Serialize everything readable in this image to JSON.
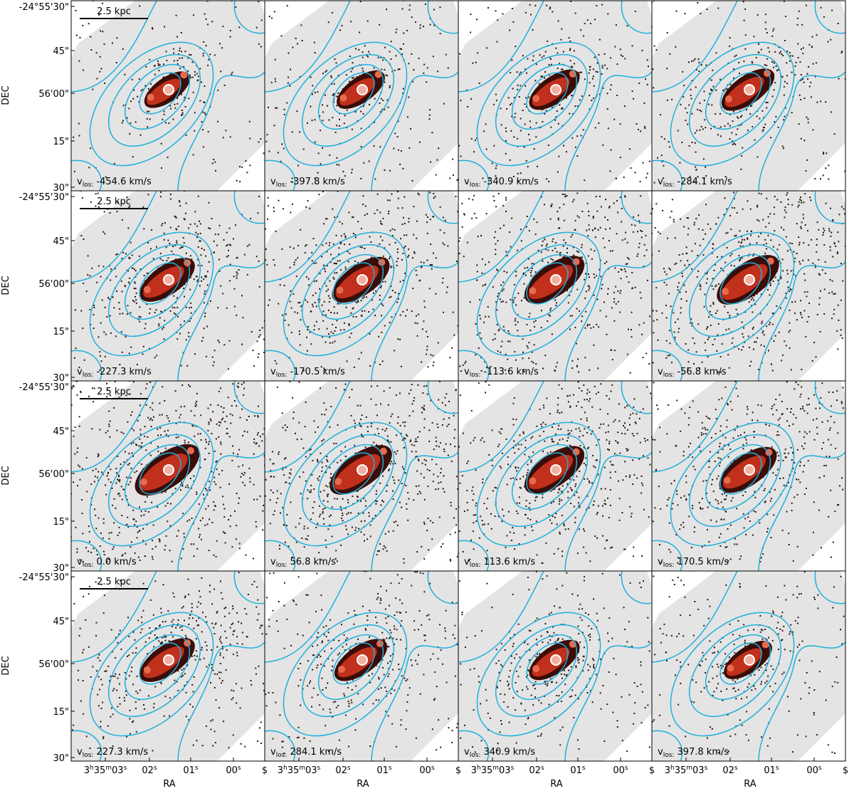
{
  "figure": {
    "y_axis_label": "DEC",
    "x_axis_label": "RA",
    "scale_bar": "2.5 kpc",
    "velocity_symbol": "v",
    "velocity_subscript": "los:",
    "dec_ticks": [
      "-24°55'30\"",
      "45\"",
      "56'00\"",
      "15\"",
      "30\""
    ],
    "ra_ticks": [
      [
        "3",
        "h",
        "35",
        "m",
        "03",
        "s"
      ],
      [
        "02",
        "s"
      ],
      [
        "01",
        "s"
      ],
      [
        "00",
        "s"
      ],
      [
        "$"
      ]
    ],
    "panels": [
      {
        "velocity": "-454.6 km/s"
      },
      {
        "velocity": "-397.8 km/s"
      },
      {
        "velocity": "-340.9 km/s"
      },
      {
        "velocity": "-284.1 km/s"
      },
      {
        "velocity": "-227.3 km/s"
      },
      {
        "velocity": "-170.5 km/s"
      },
      {
        "velocity": "-113.6 km/s"
      },
      {
        "velocity": "-56.8 km/s"
      },
      {
        "velocity": "0.0 km/s"
      },
      {
        "velocity": "56.8 km/s"
      },
      {
        "velocity": "113.6 km/s"
      },
      {
        "velocity": "170.5 km/s"
      },
      {
        "velocity": "227.3 km/s"
      },
      {
        "velocity": "284.1 km/s"
      },
      {
        "velocity": "340.9 km/s"
      },
      {
        "velocity": "397.8 km/s"
      }
    ]
  }
}
